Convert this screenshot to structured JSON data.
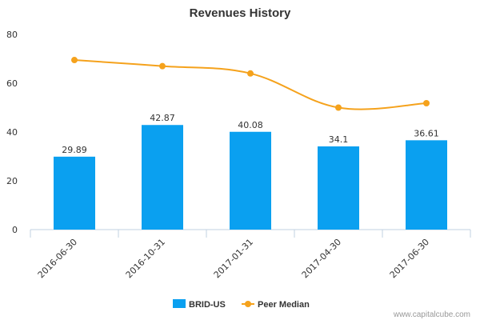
{
  "chart_data": {
    "type": "bar",
    "title": "Revenues History",
    "categories": [
      "2016-06-30",
      "2016-10-31",
      "2017-01-31",
      "2017-04-30",
      "2017-06-30"
    ],
    "series": [
      {
        "name": "BRID-US",
        "type": "bar",
        "values": [
          29.89,
          42.87,
          40.08,
          34.1,
          36.61
        ],
        "value_labels": [
          "29.89",
          "42.87",
          "40.08",
          "34.1",
          "36.61"
        ]
      },
      {
        "name": "Peer Median",
        "type": "line",
        "values": [
          69.5,
          67.0,
          64.0,
          50.0,
          51.8
        ]
      }
    ],
    "ylim": [
      0,
      80
    ],
    "yticks": [
      "0",
      "20",
      "40",
      "60",
      "80"
    ],
    "grid": false,
    "legend_position": "bottom",
    "colors": {
      "bar": "#0aa0f0",
      "line": "#f5a21c"
    }
  },
  "credit": "www.capitalcube.com"
}
